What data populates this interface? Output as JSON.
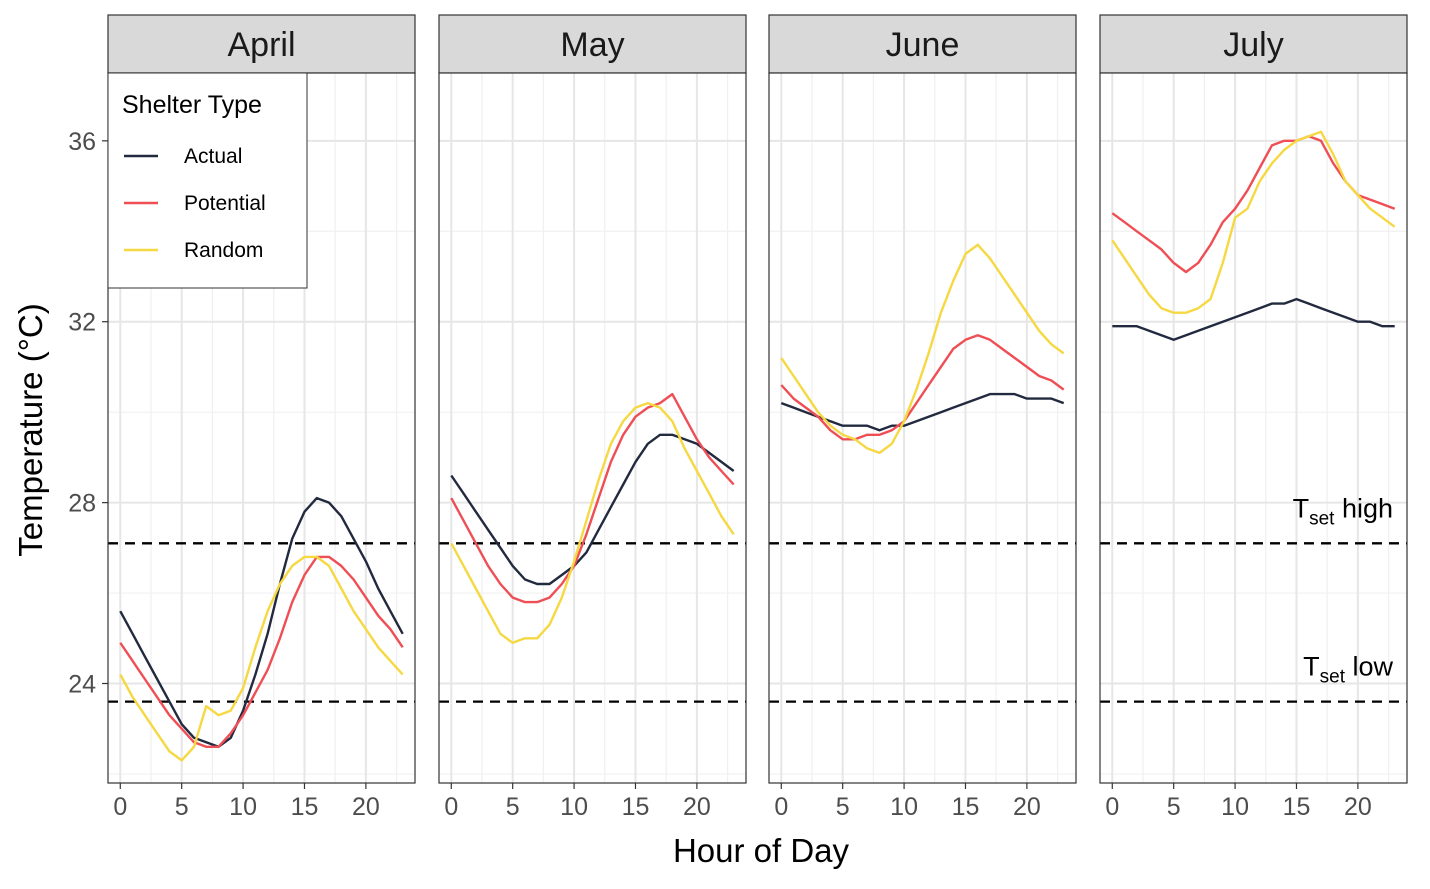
{
  "chart_data": {
    "type": "line",
    "xlabel": "Hour of Day",
    "ylabel": "Temperature (°C)",
    "xlim": [
      -1,
      24
    ],
    "ylim": [
      21.8,
      37.5
    ],
    "x_ticks": [
      0,
      5,
      10,
      15,
      20
    ],
    "y_ticks": [
      24,
      28,
      32,
      36
    ],
    "grid": true,
    "facet_labels": [
      "April",
      "May",
      "June",
      "July"
    ],
    "legend": {
      "title": "Shelter Type",
      "position": "top-left",
      "items": [
        "Actual",
        "Potential",
        "Random"
      ]
    },
    "colors": {
      "Actual": "#222a3f",
      "Potential": "#ef4e55",
      "Random": "#f6d842",
      "reference": "#000000"
    },
    "reference_lines": [
      {
        "name": "Tset high",
        "label_main": "T",
        "label_sub": "set",
        "label_rest": " high",
        "y": 27.1
      },
      {
        "name": "Tset low",
        "label_main": "T",
        "label_sub": "set",
        "label_rest": " low",
        "y": 23.6
      }
    ],
    "hours": [
      0,
      1,
      2,
      3,
      4,
      5,
      6,
      7,
      8,
      9,
      10,
      11,
      12,
      13,
      14,
      15,
      16,
      17,
      18,
      19,
      20,
      21,
      22,
      23
    ],
    "panels": [
      {
        "label": "April",
        "series": [
          {
            "name": "Actual",
            "values": [
              25.6,
              25.1,
              24.6,
              24.1,
              23.6,
              23.1,
              22.8,
              22.7,
              22.6,
              22.8,
              23.4,
              24.2,
              25.1,
              26.2,
              27.2,
              27.8,
              28.1,
              28.0,
              27.7,
              27.2,
              26.7,
              26.1,
              25.6,
              25.1
            ]
          },
          {
            "name": "Potential",
            "values": [
              24.9,
              24.5,
              24.1,
              23.7,
              23.3,
              23.0,
              22.7,
              22.6,
              22.6,
              22.9,
              23.3,
              23.8,
              24.3,
              25.0,
              25.8,
              26.4,
              26.8,
              26.8,
              26.6,
              26.3,
              25.9,
              25.5,
              25.2,
              24.8
            ]
          },
          {
            "name": "Random",
            "values": [
              24.2,
              23.7,
              23.3,
              22.9,
              22.5,
              22.3,
              22.6,
              23.5,
              23.3,
              23.4,
              23.9,
              24.8,
              25.6,
              26.2,
              26.6,
              26.8,
              26.8,
              26.6,
              26.1,
              25.6,
              25.2,
              24.8,
              24.5,
              24.2
            ]
          }
        ]
      },
      {
        "label": "May",
        "series": [
          {
            "name": "Actual",
            "values": [
              28.6,
              28.2,
              27.8,
              27.4,
              27.0,
              26.6,
              26.3,
              26.2,
              26.2,
              26.4,
              26.6,
              26.9,
              27.4,
              27.9,
              28.4,
              28.9,
              29.3,
              29.5,
              29.5,
              29.4,
              29.3,
              29.1,
              28.9,
              28.7
            ]
          },
          {
            "name": "Potential",
            "values": [
              28.1,
              27.6,
              27.1,
              26.6,
              26.2,
              25.9,
              25.8,
              25.8,
              25.9,
              26.2,
              26.6,
              27.3,
              28.1,
              28.9,
              29.5,
              29.9,
              30.1,
              30.2,
              30.4,
              29.9,
              29.4,
              29.0,
              28.7,
              28.4
            ]
          },
          {
            "name": "Random",
            "values": [
              27.1,
              26.6,
              26.1,
              25.6,
              25.1,
              24.9,
              25.0,
              25.0,
              25.3,
              25.9,
              26.7,
              27.6,
              28.5,
              29.3,
              29.8,
              30.1,
              30.2,
              30.1,
              29.8,
              29.2,
              28.7,
              28.2,
              27.7,
              27.3
            ]
          }
        ]
      },
      {
        "label": "June",
        "series": [
          {
            "name": "Actual",
            "values": [
              30.2,
              30.1,
              30.0,
              29.9,
              29.8,
              29.7,
              29.7,
              29.7,
              29.6,
              29.7,
              29.7,
              29.8,
              29.9,
              30.0,
              30.1,
              30.2,
              30.3,
              30.4,
              30.4,
              30.4,
              30.3,
              30.3,
              30.3,
              30.2
            ]
          },
          {
            "name": "Potential",
            "values": [
              30.6,
              30.3,
              30.1,
              29.9,
              29.6,
              29.4,
              29.4,
              29.5,
              29.5,
              29.6,
              29.8,
              30.2,
              30.6,
              31.0,
              31.4,
              31.6,
              31.7,
              31.6,
              31.4,
              31.2,
              31.0,
              30.8,
              30.7,
              30.5
            ]
          },
          {
            "name": "Random",
            "values": [
              31.2,
              30.8,
              30.4,
              30.0,
              29.7,
              29.5,
              29.4,
              29.2,
              29.1,
              29.3,
              29.8,
              30.5,
              31.3,
              32.2,
              32.9,
              33.5,
              33.7,
              33.4,
              33.0,
              32.6,
              32.2,
              31.8,
              31.5,
              31.3
            ]
          }
        ]
      },
      {
        "label": "July",
        "series": [
          {
            "name": "Actual",
            "values": [
              31.9,
              31.9,
              31.9,
              31.8,
              31.7,
              31.6,
              31.7,
              31.8,
              31.9,
              32.0,
              32.1,
              32.2,
              32.3,
              32.4,
              32.4,
              32.5,
              32.4,
              32.3,
              32.2,
              32.1,
              32.0,
              32.0,
              31.9,
              31.9
            ]
          },
          {
            "name": "Potential",
            "values": [
              34.4,
              34.2,
              34.0,
              33.8,
              33.6,
              33.3,
              33.1,
              33.3,
              33.7,
              34.2,
              34.5,
              34.9,
              35.4,
              35.9,
              36.0,
              36.0,
              36.1,
              36.0,
              35.5,
              35.1,
              34.8,
              34.7,
              34.6,
              34.5
            ]
          },
          {
            "name": "Random",
            "values": [
              33.8,
              33.4,
              33.0,
              32.6,
              32.3,
              32.2,
              32.2,
              32.3,
              32.5,
              33.3,
              34.3,
              34.5,
              35.1,
              35.5,
              35.8,
              36.0,
              36.1,
              36.2,
              35.7,
              35.1,
              34.8,
              34.5,
              34.3,
              34.1
            ]
          }
        ]
      }
    ]
  }
}
